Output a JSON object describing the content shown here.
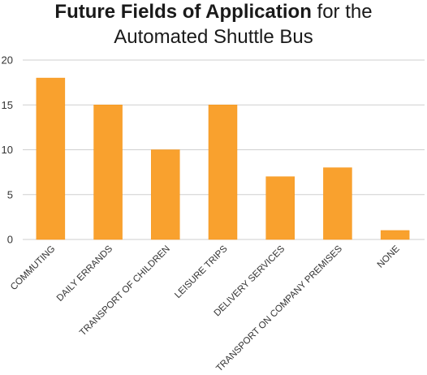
{
  "chart_data": {
    "type": "bar",
    "title_bold": "Future Fields of Application",
    "title_rest": " for the",
    "title_line2": "Automated Shuttle Bus",
    "xlabel": "",
    "ylabel": "",
    "categories": [
      "COMMUTING",
      "DAILY ERRANDS",
      "TRANSPORT OF CHILDREN",
      "LEISURE TRIPS",
      "DELIVERY SERVICES",
      "TRANSPORT ON COMPANY PREMISES",
      "NONE"
    ],
    "values": [
      18,
      15,
      10,
      15,
      7,
      8,
      1
    ],
    "ylim": [
      0,
      20
    ],
    "yticks": [
      0,
      5,
      10,
      15,
      20
    ],
    "grid": true,
    "legend": "none",
    "colors": {
      "bar": "#F9A12E",
      "bar_stroke": "#F5961A",
      "grid": "#cfcfcf"
    }
  }
}
